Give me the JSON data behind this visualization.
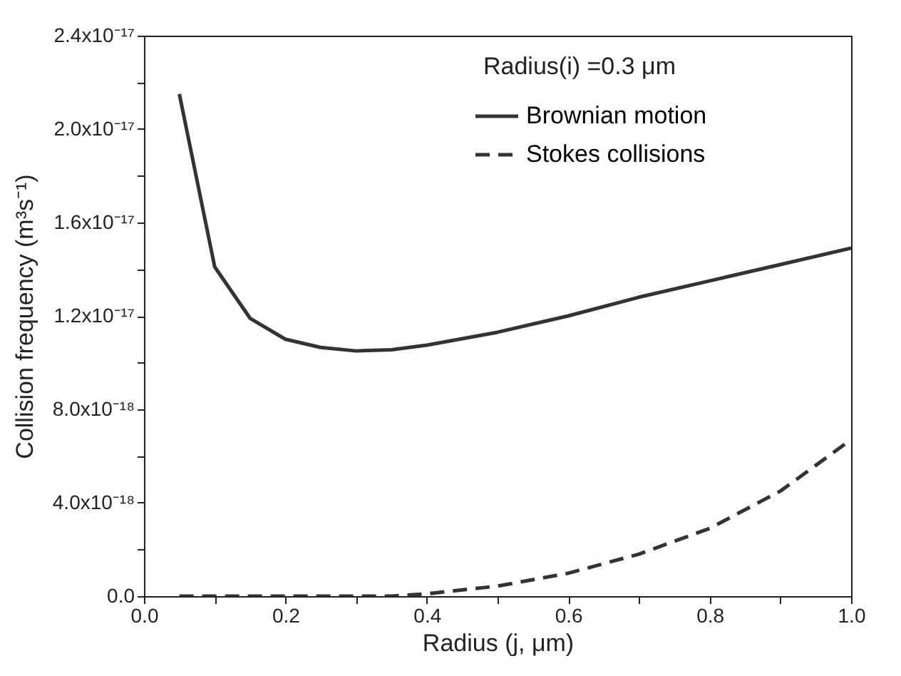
{
  "chart_data": {
    "type": "line",
    "xlabel": "Radius (j, μm)",
    "ylabel": "Collision frequency (m³s⁻¹)",
    "annotations": [
      "Radius(i) =0.3 μm"
    ],
    "x": [
      0.05,
      0.1,
      0.15,
      0.2,
      0.25,
      0.3,
      0.35,
      0.4,
      0.5,
      0.6,
      0.7,
      0.8,
      0.9,
      1.0
    ],
    "series": [
      {
        "name": "Brownian motion",
        "color": "#333333",
        "line_style": "solid",
        "values": [
          2.15e-17,
          1.41e-17,
          1.19e-17,
          1.1e-17,
          1.065e-17,
          1.05e-17,
          1.055e-17,
          1.075e-17,
          1.13e-17,
          1.2e-17,
          1.28e-17,
          1.35e-17,
          1.42e-17,
          1.49e-17
        ]
      },
      {
        "name": "Stokes collisions",
        "color": "#333333",
        "line_style": "dashed",
        "values": [
          0,
          0,
          0,
          0,
          0,
          0,
          0,
          1e-19,
          4.3e-19,
          9.8e-19,
          1.8e-18,
          2.9e-18,
          4.5e-18,
          6.7e-18
        ]
      }
    ],
    "xlim": [
      0,
      1
    ],
    "ylim": [
      0,
      2.4e-17
    ],
    "xticks": [
      {
        "value": 0,
        "label": "0.0"
      },
      {
        "value": 0.1,
        "label": null
      },
      {
        "value": 0.2,
        "label": "0.2"
      },
      {
        "value": 0.3,
        "label": null
      },
      {
        "value": 0.4,
        "label": "0.4"
      },
      {
        "value": 0.5,
        "label": null
      },
      {
        "value": 0.6,
        "label": "0.6"
      },
      {
        "value": 0.7,
        "label": null
      },
      {
        "value": 0.8,
        "label": "0.8"
      },
      {
        "value": 0.9,
        "label": null
      },
      {
        "value": 1,
        "label": "1.0"
      }
    ],
    "yticks": [
      {
        "value": 0,
        "label": "0.0"
      },
      {
        "value": 2e-18,
        "label": null
      },
      {
        "value": 4e-18,
        "label": "4.0x10⁻¹⁸"
      },
      {
        "value": 6e-18,
        "label": null
      },
      {
        "value": 8e-18,
        "label": "8.0x10⁻¹⁸"
      },
      {
        "value": 1e-17,
        "label": null
      },
      {
        "value": 1.2e-17,
        "label": "1.2x10⁻¹⁷"
      },
      {
        "value": 1.4e-17,
        "label": null
      },
      {
        "value": 1.6e-17,
        "label": "1.6x10⁻¹⁷"
      },
      {
        "value": 1.8e-17,
        "label": null
      },
      {
        "value": 2e-17,
        "label": "2.0x10⁻¹⁷"
      },
      {
        "value": 2.2e-17,
        "label": null
      },
      {
        "value": 2.4e-17,
        "label": "2.4x10⁻¹⁷"
      }
    ],
    "grid": false,
    "legend": "top right",
    "marker": "none"
  }
}
